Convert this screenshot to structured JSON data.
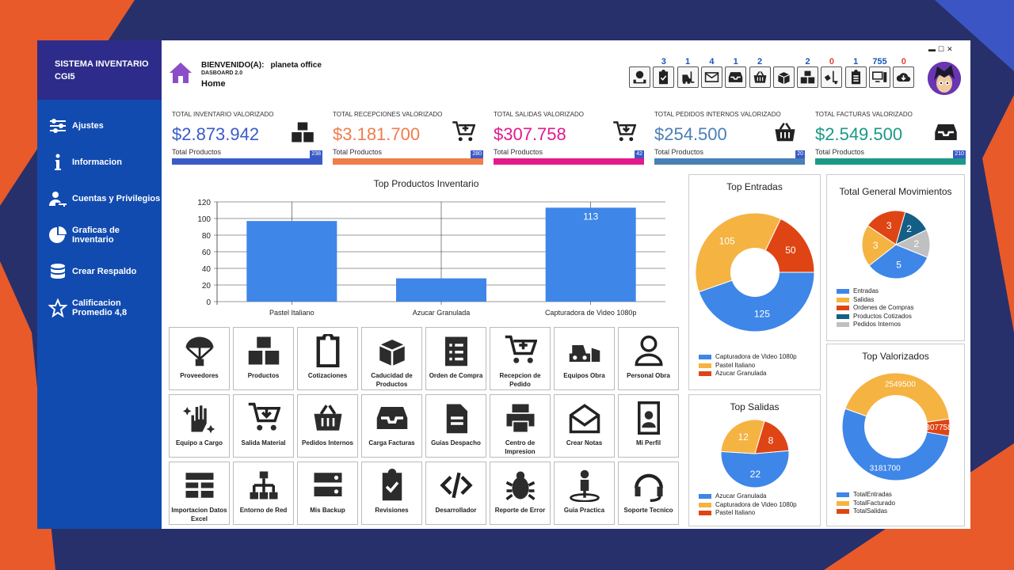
{
  "sidebar": {
    "title": "SISTEMA INVENTARIO",
    "subtitle": "CGI5",
    "items": [
      {
        "label": "Ajustes",
        "icon": "sliders-icon"
      },
      {
        "label": "Informacion",
        "icon": "info-icon"
      },
      {
        "label": "Cuentas y Privilegios",
        "icon": "user-key-icon"
      },
      {
        "label": "Graficas de Inventario",
        "icon": "pie-chart-icon"
      },
      {
        "label": "Crear Respaldo",
        "icon": "database-icon"
      },
      {
        "label": "Calificacion Promedio 4,8",
        "icon": "star-icon"
      }
    ]
  },
  "header": {
    "welcome_label": "BIENVENIDO(A):",
    "user": "planeta office",
    "dashboard": "DASBOARD 2.0",
    "page": "Home"
  },
  "toolbar": [
    {
      "icon": "money-tray-icon",
      "count": ""
    },
    {
      "icon": "clipboard-check-icon",
      "count": "3"
    },
    {
      "icon": "forklift-icon",
      "count": "1"
    },
    {
      "icon": "mail-icon",
      "count": "4"
    },
    {
      "icon": "inbox-icon",
      "count": "1"
    },
    {
      "icon": "basket-icon",
      "count": "2"
    },
    {
      "icon": "open-box-icon",
      "count": ""
    },
    {
      "icon": "boxes-icon",
      "count": "2"
    },
    {
      "icon": "truck-loading-icon",
      "count": "0"
    },
    {
      "icon": "clipboard-list-icon",
      "count": "1"
    },
    {
      "icon": "computer-icon",
      "count": "755"
    },
    {
      "icon": "cloud-download-icon",
      "count": "0"
    }
  ],
  "cards": [
    {
      "title": "TOTAL INVENTARIO VALORIZADO",
      "value": "$2.873.942",
      "label": "Total Productos",
      "count": "238",
      "color": "#3a5bc7",
      "icon": "boxes-icon"
    },
    {
      "title": "TOTAL RECEPCIONES VALORIZADO",
      "value": "$3.181.700",
      "label": "Total Productos",
      "count": "280",
      "color": "#f07c4a",
      "icon": "cart-plus-icon"
    },
    {
      "title": "TOTAL SALIDAS VALORIZADO",
      "value": "$307.758",
      "label": "Total Productos",
      "count": "42",
      "color": "#e3198c",
      "icon": "cart-arrow-icon"
    },
    {
      "title": "TOTAL PEDIDOS INTERNOS VALORIZADO",
      "value": "$254.500",
      "label": "Total Productos",
      "count": "20",
      "color": "#4a7fb6",
      "icon": "basket-icon"
    },
    {
      "title": "TOTAL FACTURAS VALORIZADO",
      "value": "$2.549.500",
      "label": "Total Productos",
      "count": "210",
      "color": "#1a9a86",
      "icon": "inbox-icon"
    }
  ],
  "tiles": [
    {
      "label": "Proveedores",
      "icon": "parachute-icon"
    },
    {
      "label": "Productos",
      "icon": "boxes-icon"
    },
    {
      "label": "Cotizaciones",
      "icon": "clipboard-icon"
    },
    {
      "label": "Caducidad de Productos",
      "icon": "open-box-icon"
    },
    {
      "label": "Orden de Compra",
      "icon": "order-list-icon"
    },
    {
      "label": "Recepcion de Pedido",
      "icon": "cart-plus-icon"
    },
    {
      "label": "Equipos Obra",
      "icon": "bulldozer-icon"
    },
    {
      "label": "Personal Obra",
      "icon": "user-icon"
    },
    {
      "label": "Equipo a Cargo",
      "icon": "hand-sparkles-icon"
    },
    {
      "label": "Salida Material",
      "icon": "cart-arrow-icon"
    },
    {
      "label": "Pedidos Internos",
      "icon": "basket-icon"
    },
    {
      "label": "Carga Facturas",
      "icon": "inbox-icon"
    },
    {
      "label": "Guias Despacho",
      "icon": "document-icon"
    },
    {
      "label": "Centro de Impresion",
      "icon": "printer-icon"
    },
    {
      "label": "Crear Notas",
      "icon": "envelope-open-icon"
    },
    {
      "label": "Mi Perfil",
      "icon": "id-badge-icon"
    },
    {
      "label": "Importacion Datos Excel",
      "icon": "table-icon"
    },
    {
      "label": "Entorno de Red",
      "icon": "network-icon"
    },
    {
      "label": "Mis Backup",
      "icon": "server-icon"
    },
    {
      "label": "Revisiones",
      "icon": "clipboard-check-icon"
    },
    {
      "label": "Desarrollador",
      "icon": "code-icon"
    },
    {
      "label": "Reporte de Error",
      "icon": "bug-icon"
    },
    {
      "label": "Guia Practica",
      "icon": "street-view-icon"
    },
    {
      "label": "Soporte Tecnico",
      "icon": "headset-icon"
    }
  ],
  "chart_data": [
    {
      "type": "bar",
      "title": "Top Productos Inventario",
      "categories": [
        "Pastel Italiano",
        "Azucar Granulada",
        "Capturadora de Video 1080p"
      ],
      "values": [
        97,
        28,
        113
      ],
      "data_labels": [
        "",
        "",
        "113"
      ],
      "ylim": [
        0,
        120
      ],
      "yticks": [
        0,
        20,
        40,
        60,
        80,
        100,
        120
      ],
      "grid": true,
      "color": "#3e86e8"
    },
    {
      "type": "pie",
      "title": "Top Entradas",
      "donut": true,
      "labels": [
        "Capturadora de Video 1080p",
        "Pastel Italiano",
        "Azucar Granulada"
      ],
      "values": [
        125,
        105,
        50
      ],
      "colors": [
        "#3e86e8",
        "#f5b342",
        "#df4514"
      ]
    },
    {
      "type": "pie",
      "title": "Top Salidas",
      "donut": false,
      "labels": [
        "Azucar Granulada",
        "Capturadora de Video 1080p",
        "Pastel Italiano"
      ],
      "values": [
        22,
        12,
        8
      ],
      "colors": [
        "#3e86e8",
        "#f5b342",
        "#df4514"
      ]
    },
    {
      "type": "pie",
      "title": "Total General Movimientos",
      "donut": false,
      "labels": [
        "Entradas",
        "Salidas",
        "Ordenes de Compras",
        "Productos Cotizados",
        "Pedidos Internos"
      ],
      "values": [
        5,
        3,
        3,
        2,
        2
      ],
      "colors": [
        "#3e86e8",
        "#f5b342",
        "#df4514",
        "#155e86",
        "#c0c0c0"
      ]
    },
    {
      "type": "pie",
      "title": "Top Valorizados",
      "donut": true,
      "labels": [
        "TotalEntradas",
        "TotalFacturado",
        "TotalSalidas"
      ],
      "values": [
        3181700,
        2549500,
        307758
      ],
      "colors": [
        "#3e86e8",
        "#f5b342",
        "#df4514"
      ]
    }
  ]
}
